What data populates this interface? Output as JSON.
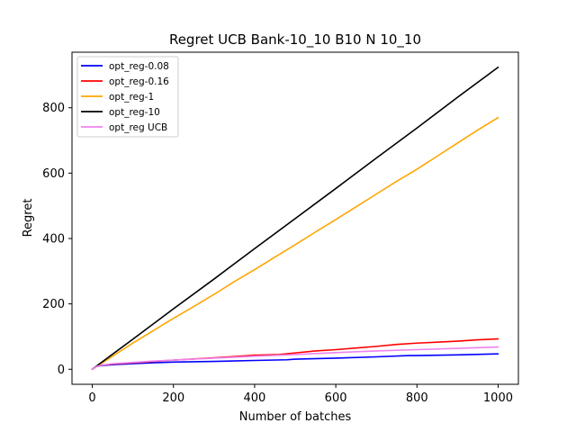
{
  "chart_data": {
    "type": "line",
    "title": "Regret UCB Bank-10_10 B10 N 10_10",
    "xlabel": "Number of batches",
    "ylabel": "Regret",
    "xlim": [
      -50,
      1050
    ],
    "ylim": [
      -46,
      970
    ],
    "xticks": [
      0,
      200,
      400,
      600,
      800,
      1000
    ],
    "yticks": [
      0,
      200,
      400,
      600,
      800
    ],
    "grid": false,
    "legend_position": "top-left",
    "series": [
      {
        "name": "opt_reg-0.08",
        "color": "#0000ff",
        "x": [
          0,
          10,
          20,
          50,
          100,
          150,
          200,
          300,
          400,
          480,
          500,
          600,
          700,
          780,
          800,
          900,
          1000
        ],
        "y": [
          0,
          8,
          11,
          14,
          17,
          20,
          22,
          24,
          27,
          29,
          31,
          34,
          38,
          42,
          42,
          44,
          47
        ]
      },
      {
        "name": "opt_reg-0.16",
        "color": "#ff0000",
        "x": [
          0,
          10,
          20,
          50,
          100,
          150,
          200,
          300,
          400,
          460,
          500,
          550,
          600,
          650,
          700,
          750,
          800,
          850,
          900,
          950,
          1000
        ],
        "y": [
          0,
          8,
          12,
          16,
          20,
          24,
          28,
          35,
          43,
          45,
          50,
          56,
          60,
          65,
          70,
          76,
          80,
          83,
          86,
          90,
          93
        ]
      },
      {
        "name": "opt_reg-1",
        "color": "#ffa500",
        "x": [
          0,
          50,
          100,
          150,
          200,
          250,
          300,
          350,
          400,
          450,
          500,
          550,
          600,
          650,
          700,
          750,
          800,
          850,
          900,
          950,
          1000
        ],
        "y": [
          0,
          40,
          80,
          118,
          156,
          192,
          229,
          268,
          305,
          343,
          381,
          420,
          458,
          497,
          536,
          575,
          612,
          652,
          692,
          732,
          770
        ]
      },
      {
        "name": "opt_reg-10",
        "color": "#000000",
        "x": [
          0,
          100,
          200,
          300,
          400,
          500,
          600,
          700,
          800,
          900,
          1000
        ],
        "y": [
          0,
          92,
          185,
          276,
          369,
          461,
          553,
          646,
          738,
          832,
          924
        ]
      },
      {
        "name": "opt_reg UCB",
        "color": "#ee82ee",
        "x": [
          0,
          10,
          20,
          50,
          100,
          150,
          200,
          300,
          400,
          500,
          600,
          700,
          800,
          900,
          1000
        ],
        "y": [
          0,
          8,
          12,
          17,
          21,
          25,
          28,
          34,
          40,
          45,
          51,
          56,
          60,
          64,
          68
        ]
      }
    ]
  }
}
